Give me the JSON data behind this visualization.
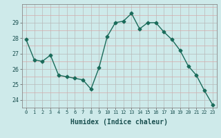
{
  "x": [
    0,
    1,
    2,
    3,
    4,
    5,
    6,
    7,
    8,
    9,
    10,
    11,
    12,
    13,
    14,
    15,
    16,
    17,
    18,
    19,
    20,
    21,
    22,
    23
  ],
  "y": [
    27.9,
    26.6,
    26.5,
    26.9,
    25.6,
    25.5,
    25.4,
    25.3,
    24.7,
    26.1,
    28.1,
    29.0,
    29.1,
    29.6,
    28.6,
    29.0,
    29.0,
    28.4,
    27.9,
    27.2,
    26.2,
    25.6,
    24.6,
    23.7
  ],
  "line_color": "#1a6b5a",
  "marker": "D",
  "marker_size": 2.5,
  "bg_color": "#ceeaea",
  "xlabel": "Humidex (Indice chaleur)",
  "ylim": [
    23.5,
    30.2
  ],
  "xlim": [
    -0.5,
    23.5
  ],
  "yticks": [
    24,
    25,
    26,
    27,
    28,
    29
  ],
  "xtick_labels": [
    "0",
    "1",
    "2",
    "3",
    "4",
    "5",
    "6",
    "7",
    "8",
    "9",
    "10",
    "11",
    "12",
    "13",
    "14",
    "15",
    "16",
    "17",
    "18",
    "19",
    "20",
    "21",
    "22",
    "23"
  ]
}
